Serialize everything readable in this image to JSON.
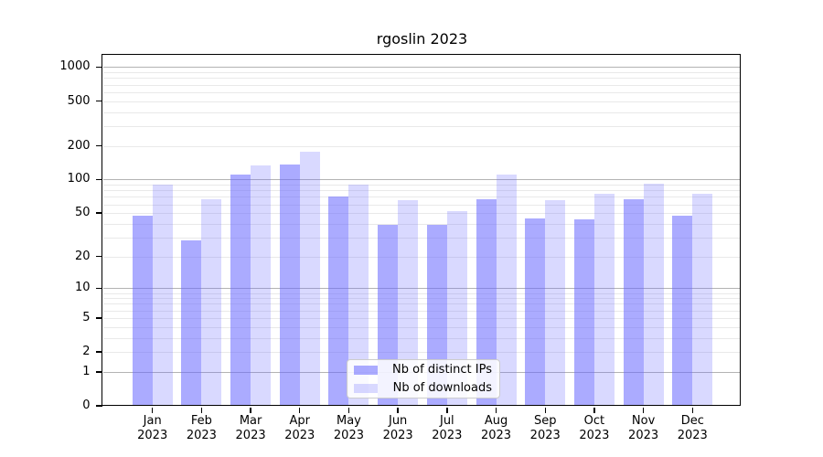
{
  "title": "rgoslin 2023",
  "chart_data": {
    "type": "bar",
    "title": "rgoslin 2023",
    "scale": "log1p",
    "grid": true,
    "legend_position": "lower center",
    "categories": [
      "Jan 2023",
      "Feb 2023",
      "Mar 2023",
      "Apr 2023",
      "May 2023",
      "Jun 2023",
      "Jul 2023",
      "Aug 2023",
      "Sep 2023",
      "Oct 2023",
      "Nov 2023",
      "Dec 2023"
    ],
    "series": [
      {
        "name": "Nb of distinct IPs",
        "color": "rgba(102,102,255,0.55)",
        "values": [
          47,
          28,
          111,
          137,
          70,
          39,
          39,
          67,
          45,
          44,
          67,
          47
        ]
      },
      {
        "name": "Nb of downloads",
        "color": "rgba(102,102,255,0.25)",
        "values": [
          90,
          66,
          135,
          178,
          90,
          65,
          52,
          111,
          65,
          75,
          92,
          74
        ]
      }
    ],
    "yticks": [
      0,
      1,
      2,
      5,
      10,
      20,
      50,
      100,
      200,
      500,
      1000
    ],
    "ylim": [
      0,
      1500
    ],
    "colors": {
      "major_grid": "#b3b3b3",
      "minor_grid": "#e9e9e9",
      "spine": "#000000"
    }
  }
}
